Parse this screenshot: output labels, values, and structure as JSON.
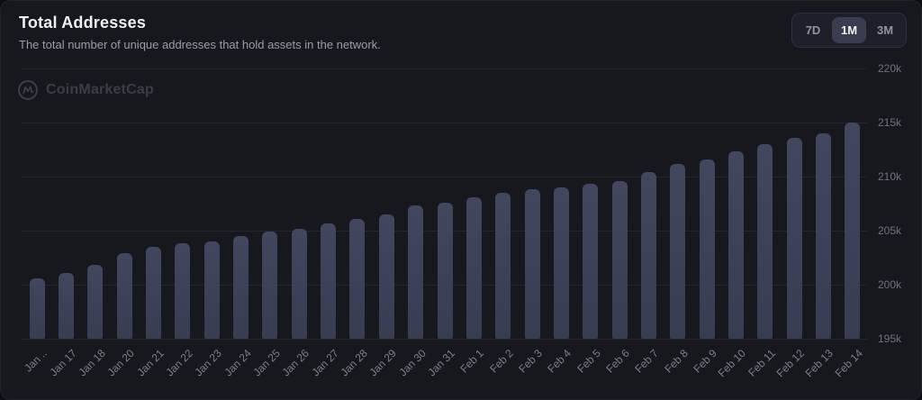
{
  "header": {
    "title": "Total Addresses",
    "subtitle": "The total number of unique addresses that hold assets in the network."
  },
  "range_selector": {
    "options": [
      {
        "label": "7D",
        "selected": false
      },
      {
        "label": "1M",
        "selected": true
      },
      {
        "label": "3M",
        "selected": false
      }
    ]
  },
  "watermark": {
    "label": "CoinMarketCap",
    "icon": "coinmarketcap-logo-icon"
  },
  "colors": {
    "card_background": "#17181d",
    "bar": "#3b3f54",
    "gridline": "#24252e",
    "title_text": "#eef0f4",
    "subtitle_text": "#9a9dab",
    "axis_text": "#7c7f8c",
    "selected_range_background": "#3a3d50",
    "watermark_text": "#3b3d48"
  },
  "chart_data": {
    "type": "bar",
    "title": "Total Addresses",
    "categories": [
      "Jan ..",
      "Jan 17",
      "Jan 18",
      "Jan 20",
      "Jan 21",
      "Jan 22",
      "Jan 23",
      "Jan 24",
      "Jan 25",
      "Jan 26",
      "Jan 27",
      "Jan 28",
      "Jan 29",
      "Jan 30",
      "Jan 31",
      "Feb 1",
      "Feb 2",
      "Feb 3",
      "Feb 4",
      "Feb 5",
      "Feb 6",
      "Feb 7",
      "Feb 8",
      "Feb 9",
      "Feb 10",
      "Feb 11",
      "Feb 12",
      "Feb 13",
      "Feb 14"
    ],
    "values": [
      200.6,
      201.1,
      201.8,
      202.9,
      203.5,
      203.8,
      204.0,
      204.5,
      204.9,
      205.2,
      205.7,
      206.1,
      206.5,
      207.3,
      207.6,
      208.1,
      208.5,
      208.8,
      209.0,
      209.3,
      209.6,
      210.4,
      211.2,
      211.6,
      212.3,
      213.0,
      213.6,
      214.0,
      215.0
    ],
    "values_unit": "thousands of addresses",
    "xlabel": "",
    "ylabel": "",
    "y_ticks": [
      {
        "label": "220k",
        "value": 220
      },
      {
        "label": "215k",
        "value": 215
      },
      {
        "label": "210k",
        "value": 210
      },
      {
        "label": "205k",
        "value": 205
      },
      {
        "label": "200k",
        "value": 200
      },
      {
        "label": "195k",
        "value": 195
      }
    ],
    "ylim": [
      195,
      220
    ],
    "grid": "horizontal",
    "y_axis_side": "right",
    "legend": "none"
  }
}
